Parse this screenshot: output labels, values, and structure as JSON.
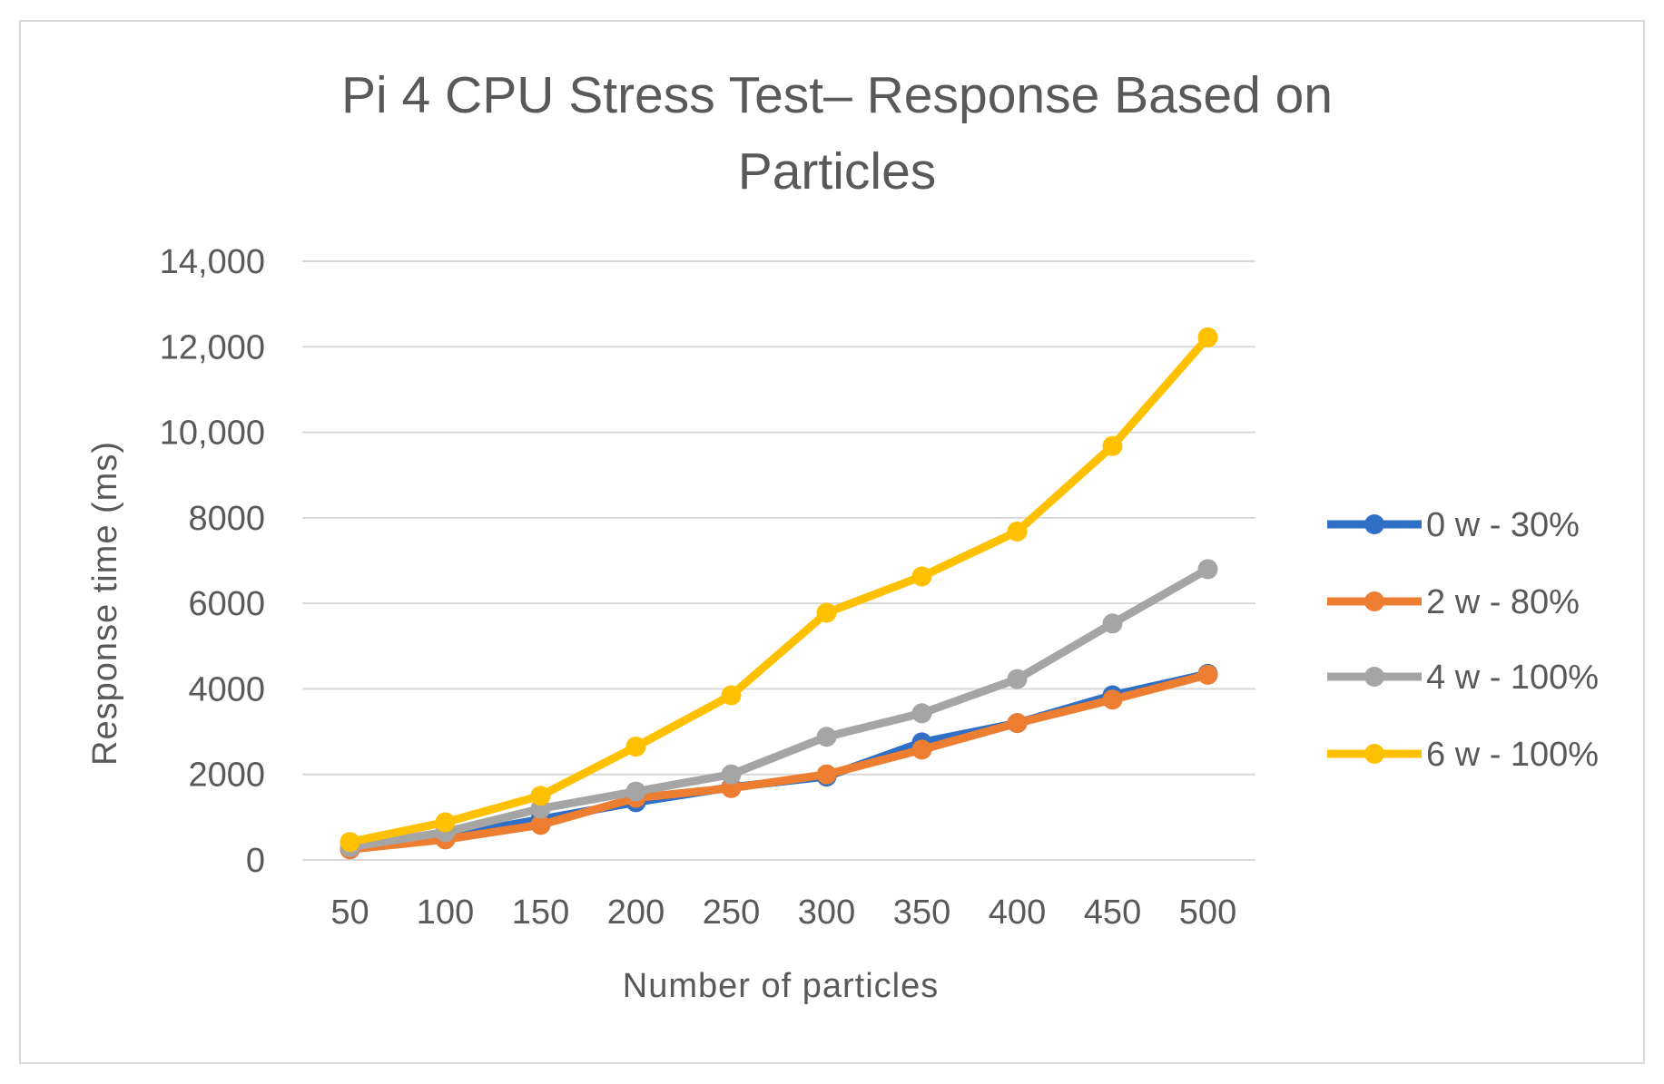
{
  "chart_data": {
    "type": "line",
    "title_lines": [
      "Pi 4 CPU Stress Test– Response Based on",
      "Particles"
    ],
    "xlabel": "Number of particles",
    "ylabel": "Response time (ms)",
    "categories": [
      "50",
      "100",
      "150",
      "200",
      "250",
      "300",
      "350",
      "400",
      "450",
      "500"
    ],
    "ylim": [
      0,
      14000
    ],
    "yticks": [
      0,
      2000,
      4000,
      6000,
      8000,
      10000,
      12000,
      14000
    ],
    "ytick_labels": [
      "0",
      "2000",
      "4000",
      "6000",
      "8000",
      "10,000",
      "12,000",
      "14,000"
    ],
    "grid": true,
    "legend_position": "right",
    "series": [
      {
        "name": "0 w - 30%",
        "color": "#2f6fc6",
        "values": [
          250,
          550,
          950,
          1350,
          1700,
          1950,
          2750,
          3200,
          3850,
          4350
        ]
      },
      {
        "name": "2 w - 80%",
        "color": "#ed7d31",
        "values": [
          250,
          480,
          820,
          1450,
          1680,
          2000,
          2580,
          3200,
          3750,
          4330
        ]
      },
      {
        "name": "4 w - 100%",
        "color": "#a5a5a5",
        "values": [
          300,
          650,
          1200,
          1600,
          2000,
          2880,
          3430,
          4230,
          5530,
          6800
        ]
      },
      {
        "name": "6 w - 100%",
        "color": "#ffc000",
        "values": [
          420,
          880,
          1500,
          2650,
          3850,
          5780,
          6630,
          7680,
          9680,
          12220
        ]
      }
    ]
  }
}
